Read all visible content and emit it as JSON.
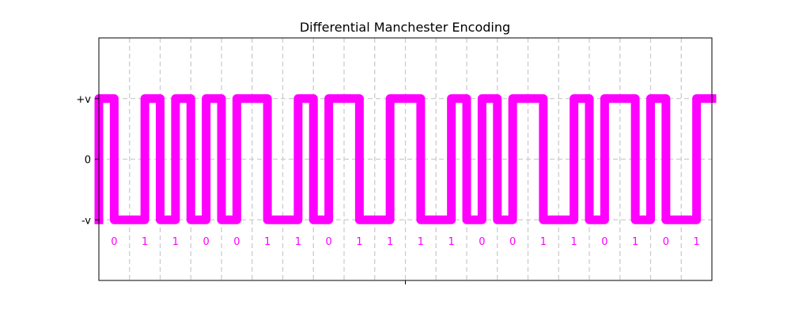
{
  "chart_data": {
    "type": "line",
    "title": "Differential Manchester Encoding",
    "xlabel": "",
    "ylabel": "",
    "bits": [
      "0",
      "1",
      "1",
      "0",
      "0",
      "1",
      "1",
      "0",
      "1",
      "1",
      "1",
      "1",
      "0",
      "0",
      "1",
      "1",
      "0",
      "1",
      "0",
      "1"
    ],
    "ytick_labels": [
      {
        "label": "+v",
        "value": 1
      },
      {
        "label": "0",
        "value": 0
      },
      {
        "label": "-v",
        "value": -1
      }
    ],
    "ylim": [
      -2,
      2
    ],
    "xlim": [
      0,
      20
    ],
    "grid": true,
    "color": "#ff00ff",
    "initial_level": -1,
    "series": [
      {
        "x": [
          0,
          0,
          0.5,
          0.5,
          1,
          1,
          1.5,
          1.5,
          2,
          2,
          2.5,
          2.5,
          3,
          3,
          3.5,
          3.5,
          4,
          4,
          4.5,
          4.5,
          5,
          5,
          5.5,
          5.5,
          6,
          6,
          6.5,
          6.5,
          7,
          7,
          7.5,
          7.5,
          8,
          8,
          8.5,
          8.5,
          9,
          9,
          9.5,
          9.5,
          10,
          10,
          10.5,
          10.5,
          11,
          11,
          11.5,
          11.5,
          12,
          12,
          12.5,
          12.5,
          13,
          13,
          13.5,
          13.5,
          14,
          14,
          14.5,
          14.5,
          15,
          15,
          15.5,
          15.5,
          16,
          16,
          16.5,
          16.5,
          17,
          17,
          17.5,
          17.5,
          18,
          18,
          18.5,
          18.5,
          19,
          19,
          19.5,
          19.5,
          20
        ],
        "y": [
          -1,
          1,
          1,
          -1,
          -1,
          -1,
          -1,
          1,
          1,
          -1,
          -1,
          1,
          1,
          -1,
          -1,
          1,
          1,
          -1,
          -1,
          1,
          1,
          1,
          1,
          -1,
          -1,
          -1,
          -1,
          1,
          1,
          -1,
          -1,
          1,
          1,
          1,
          1,
          -1,
          -1,
          -1,
          -1,
          1,
          1,
          1,
          1,
          -1,
          -1,
          -1,
          -1,
          1,
          1,
          -1,
          -1,
          1,
          1,
          -1,
          -1,
          1,
          1,
          1,
          1,
          -1,
          -1,
          -1,
          -1,
          1,
          1,
          -1,
          -1,
          1,
          1,
          1,
          1,
          -1,
          -1,
          1,
          1,
          -1,
          -1,
          -1,
          -1,
          1,
          1
        ]
      }
    ]
  }
}
